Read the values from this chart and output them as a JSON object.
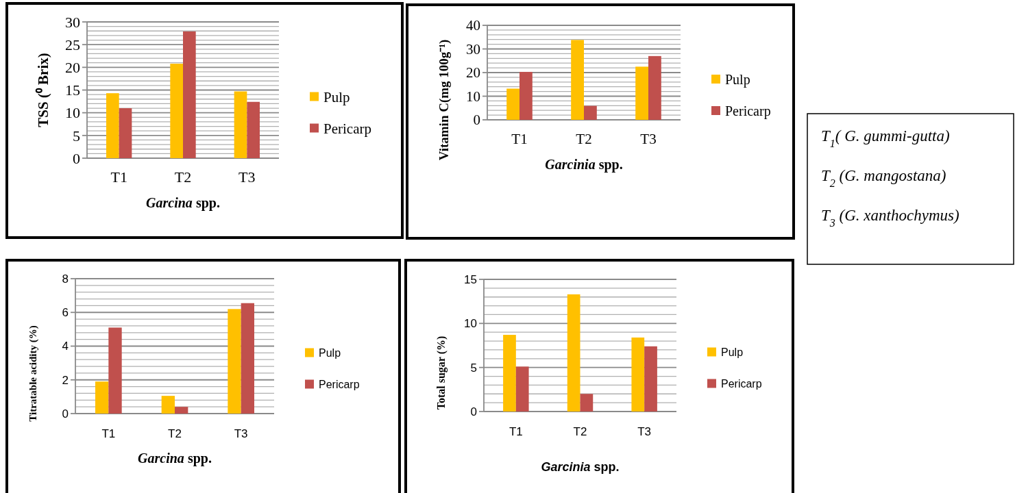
{
  "chart_data": [
    {
      "type": "bar",
      "ylabel": "TSS  (⁰ Brix)",
      "xlabel": "Garcina spp.",
      "categories": [
        "T1",
        "T2",
        "T3"
      ],
      "series": [
        {
          "name": "Pulp",
          "color": "#ffc000",
          "values": [
            14.3,
            20.8,
            14.7
          ]
        },
        {
          "name": "Pericarp",
          "color": "#c0504d",
          "values": [
            11.0,
            27.9,
            12.4
          ]
        }
      ],
      "ylim": [
        0,
        30
      ],
      "yticks": [
        0,
        {
          "value": 1,
          "label": null
        },
        {
          "value": 2,
          "label": null
        },
        {
          "value": 3,
          "label": null
        },
        {
          "value": 4,
          "label": null
        },
        5,
        {
          "value": 6,
          "label": null
        },
        {
          "value": 7,
          "label": null
        },
        {
          "value": 8,
          "label": null
        },
        {
          "value": 9,
          "label": null
        },
        10,
        {
          "value": 11,
          "label": null
        },
        {
          "value": 12,
          "label": null
        },
        {
          "value": 13,
          "label": null
        },
        {
          "value": 14,
          "label": null
        },
        15,
        {
          "value": 16,
          "label": null
        },
        {
          "value": 17,
          "label": null
        },
        {
          "value": 18,
          "label": null
        },
        {
          "value": 19,
          "label": null
        },
        20,
        {
          "value": 21,
          "label": null
        },
        {
          "value": 22,
          "label": null
        },
        {
          "value": 23,
          "label": null
        },
        {
          "value": 24,
          "label": null
        },
        25,
        {
          "value": 26,
          "label": null
        },
        {
          "value": 27,
          "label": null
        },
        {
          "value": 28,
          "label": null
        },
        {
          "value": 29,
          "label": null
        },
        30
      ],
      "grid": "y",
      "legend": "right"
    },
    {
      "type": "bar",
      "ylabel": "Vitamin C(mg 100g⁻¹)",
      "xlabel": "Garcinia spp.",
      "categories": [
        "T1",
        "T2",
        "T3"
      ],
      "series": [
        {
          "name": "Pulp",
          "color": "#ffc000",
          "values": [
            13.2,
            33.8,
            22.5
          ]
        },
        {
          "name": "Pericarp",
          "color": "#c0504d",
          "values": [
            20.3,
            5.9,
            27.0
          ]
        }
      ],
      "ylim": [
        0,
        40
      ],
      "yticks": [
        0,
        {
          "value": 2,
          "label": null
        },
        {
          "value": 4,
          "label": null
        },
        {
          "value": 6,
          "label": null
        },
        {
          "value": 8,
          "label": null
        },
        10,
        {
          "value": 12,
          "label": null
        },
        {
          "value": 14,
          "label": null
        },
        {
          "value": 16,
          "label": null
        },
        {
          "value": 18,
          "label": null
        },
        20,
        {
          "value": 22,
          "label": null
        },
        {
          "value": 24,
          "label": null
        },
        {
          "value": 26,
          "label": null
        },
        {
          "value": 28,
          "label": null
        },
        30,
        {
          "value": 32,
          "label": null
        },
        {
          "value": 34,
          "label": null
        },
        {
          "value": 36,
          "label": null
        },
        {
          "value": 38,
          "label": null
        },
        40
      ],
      "grid": "y",
      "legend": "right"
    },
    {
      "type": "other",
      "annotations": [
        "T$_{1}$( G. gummi-gutta)",
        "T$_{2}$ (G. mangostana)",
        "T$_{3}$ (G. xanthochymus)"
      ]
    },
    {
      "type": "bar",
      "ylabel": "Titratable acidity (%)",
      "xlabel": "Garcina spp.",
      "categories": [
        "T1",
        "T2",
        "T3"
      ],
      "series": [
        {
          "name": "Pulp",
          "color": "#ffc000",
          "values": [
            1.9,
            1.05,
            6.2
          ]
        },
        {
          "name": "Pericarp",
          "color": "#c0504d",
          "values": [
            5.1,
            0.4,
            6.55
          ]
        }
      ],
      "ylim": [
        0,
        8
      ],
      "yticks": [
        0,
        {
          "value": 0.4,
          "label": null
        },
        {
          "value": 0.8,
          "label": null
        },
        {
          "value": 1.2,
          "label": null
        },
        {
          "value": 1.6,
          "label": null
        },
        2,
        {
          "value": 2.4,
          "label": null
        },
        {
          "value": 2.8,
          "label": null
        },
        {
          "value": 3.2,
          "label": null
        },
        {
          "value": 3.6,
          "label": null
        },
        4,
        {
          "value": 4.4,
          "label": null
        },
        {
          "value": 4.8,
          "label": null
        },
        {
          "value": 5.2,
          "label": null
        },
        {
          "value": 5.6,
          "label": null
        },
        6,
        {
          "value": 6.4,
          "label": null
        },
        {
          "value": 6.8,
          "label": null
        },
        {
          "value": 7.2,
          "label": null
        },
        {
          "value": 7.6,
          "label": null
        },
        8
      ],
      "grid": "y",
      "legend": "right"
    },
    {
      "type": "bar",
      "ylabel": "Total sugar (%)",
      "xlabel": "Garcinia spp.",
      "categories": [
        "T1",
        "T2",
        "T3"
      ],
      "series": [
        {
          "name": "Pulp",
          "color": "#ffc000",
          "values": [
            8.7,
            13.3,
            8.4
          ]
        },
        {
          "name": "Pericarp",
          "color": "#c0504d",
          "values": [
            5.1,
            2.0,
            7.4
          ]
        }
      ],
      "ylim": [
        0,
        15
      ],
      "yticks": [
        0,
        {
          "value": 1,
          "label": null
        },
        {
          "value": 2,
          "label": null
        },
        {
          "value": 3,
          "label": null
        },
        {
          "value": 4,
          "label": null
        },
        5,
        {
          "value": 6,
          "label": null
        },
        {
          "value": 7,
          "label": null
        },
        {
          "value": 8,
          "label": null
        },
        {
          "value": 9,
          "label": null
        },
        10,
        {
          "value": 11,
          "label": null
        },
        {
          "value": 12,
          "label": null
        },
        {
          "value": 13,
          "label": null
        },
        {
          "value": 14,
          "label": null
        },
        15
      ],
      "grid": "y",
      "legend": "right"
    }
  ]
}
